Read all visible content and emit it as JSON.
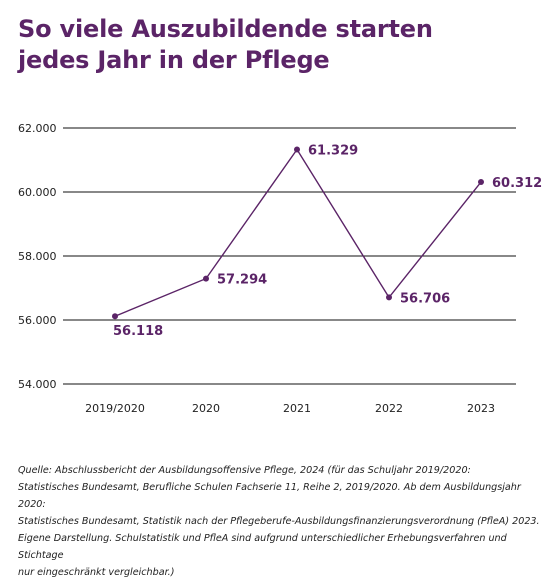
{
  "title_lines": [
    "So viele Auszubildende starten",
    "jedes Jahr in der Pflege"
  ],
  "chart_data": {
    "type": "line",
    "title": "So viele Auszubildende starten jedes Jahr in der Pflege",
    "categories": [
      "2019/2020",
      "2020",
      "2021",
      "2022",
      "2023"
    ],
    "series": [
      {
        "values": [
          56118,
          57294,
          61329,
          56706,
          60312
        ],
        "value_labels": [
          "56.118",
          "57.294",
          "61.329",
          "56.706",
          "60.312"
        ]
      }
    ],
    "y_ticks": [
      54000,
      56000,
      58000,
      60000,
      62000
    ],
    "y_tick_labels": [
      "54.000",
      "56.000",
      "58.000",
      "60.000",
      "62.000"
    ],
    "ylim": [
      54000,
      62000
    ],
    "grid": true,
    "line_color": "#5b2467",
    "gridline_color": "#111111"
  },
  "source_lines": [
    "Quelle: Abschlussbericht der Ausbildungsoffensive Pflege, 2024 (für das Schuljahr 2019/2020:",
    "Statistisches Bundesamt, Berufliche Schulen Fachserie 11, Reihe 2, 2019/2020. Ab dem Ausbildungsjahr 2020:",
    "Statistisches Bundesamt, Statistik nach der Pflegeberufe-Ausbildungsfinanzierungsverordnung (PfleA) 2023.",
    "Eigene Darstellung. Schulstatistik und PfleA sind aufgrund unterschiedlicher Erhebungsverfahren und Stichtage",
    "nur eingeschränkt vergleichbar.)"
  ]
}
